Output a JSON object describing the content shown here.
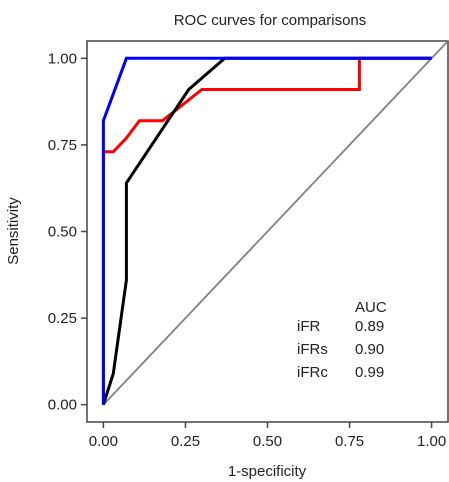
{
  "chart_data": {
    "type": "line",
    "title": "ROC curves for comparisons",
    "xlabel": "1-specificity",
    "ylabel": "Sensitivity",
    "xlim": [
      -0.05,
      1.05
    ],
    "ylim": [
      -0.05,
      1.05
    ],
    "x_ticks": [
      "0.00",
      "0.25",
      "0.50",
      "0.75",
      "1.00"
    ],
    "y_ticks": [
      "0.00",
      "0.25",
      "0.50",
      "0.75",
      "1.00"
    ],
    "grid": false,
    "reference_line": {
      "x": [
        0,
        1
      ],
      "y": [
        0,
        1
      ],
      "color": "#808080"
    },
    "series": [
      {
        "color": "#ff0000",
        "x": [
          0.0,
          0.0,
          0.03,
          0.07,
          0.11,
          0.18,
          0.3,
          0.78,
          0.78,
          1.0
        ],
        "y": [
          0.0,
          0.73,
          0.73,
          0.77,
          0.82,
          0.82,
          0.91,
          0.91,
          1.0,
          1.0
        ]
      },
      {
        "color": "#000000",
        "x": [
          0.0,
          0.03,
          0.07,
          0.07,
          0.26,
          0.37,
          1.0
        ],
        "y": [
          0.0,
          0.09,
          0.36,
          0.64,
          0.91,
          1.0,
          1.0
        ]
      },
      {
        "color": "#0000ff",
        "x": [
          0.0,
          0.0,
          0.07,
          1.0
        ],
        "y": [
          0.0,
          0.82,
          1.0,
          1.0
        ]
      }
    ],
    "auc_table": {
      "header": "AUC",
      "rows": [
        {
          "label": "iFR",
          "value": "0.89"
        },
        {
          "label": "iFRs",
          "value": "0.90"
        },
        {
          "label": "iFRc",
          "value": "0.99"
        }
      ]
    }
  }
}
